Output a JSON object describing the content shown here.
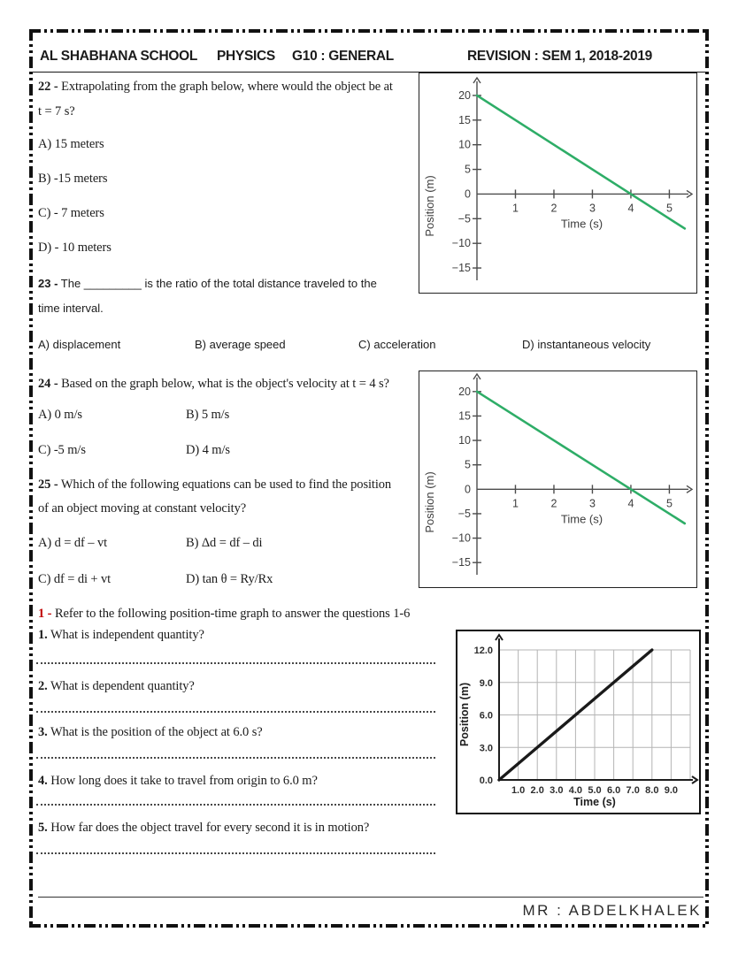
{
  "header": {
    "school": "AL SHABHANA SCHOOL",
    "subject": "PHYSICS",
    "grade": "G10 : GENERAL",
    "revision": "REVISION : SEM 1,  2018-2019"
  },
  "questions": {
    "q22": {
      "number": "22 -",
      "line1": "Extrapolating from the graph below, where would the object be at",
      "line2": "t = 7 s?",
      "options": [
        "A) 15 meters",
        "B) -15 meters",
        "C) - 7 meters",
        "D) - 10 meters"
      ]
    },
    "q23": {
      "number": "23 -",
      "line1": "The _________ is the ratio of the total distance traveled to the",
      "line2": "time interval.",
      "options": [
        "A) displacement",
        "B) average speed",
        "C) acceleration",
        "D) instantaneous velocity"
      ]
    },
    "q24": {
      "number": "24 -",
      "line1": "Based on the graph below, what is the object's velocity at t = 4 s?",
      "options": [
        "A) 0 m/s",
        "B) 5 m/s",
        "C) -5 m/s",
        "D) 4 m/s"
      ]
    },
    "q25": {
      "number": "25 -",
      "line1": "Which of the following equations can be used to find the position",
      "line2": "of an object moving at constant velocity?",
      "options": [
        "A) d = df – vt",
        "B) Δd = df – di",
        "C) df = di + vt",
        "D) tan θ = Ry/Rx"
      ]
    }
  },
  "section1": {
    "number": "1 -",
    "intro": "Refer to the following position-time graph to answer the questions 1-6",
    "items": [
      {
        "num": "1.",
        "text": "What is independent quantity?"
      },
      {
        "num": "2.",
        "text": "What is dependent quantity?"
      },
      {
        "num": "3.",
        "text": "What is the position of the object at 6.0 s?"
      },
      {
        "num": "4.",
        "text": "How long does it take to travel from origin to 6.0 m?"
      },
      {
        "num": "5.",
        "text": "How far does the object travel for every second it is in motion?"
      }
    ]
  },
  "footer": {
    "teacher": "MR : ABDELKHALEK"
  },
  "chart_data": [
    {
      "id": "q22-graph",
      "type": "line",
      "xlabel": "Time (s)",
      "ylabel": "Position (m)",
      "xlim": [
        0,
        5.45
      ],
      "ylim": [
        -17.5,
        22.5
      ],
      "x_ticks": [
        1,
        2,
        3,
        4,
        5
      ],
      "x_tick_labels": [
        "1",
        "2",
        "3",
        "4",
        "5"
      ],
      "y_ticks": [
        -15,
        -10,
        -5,
        0,
        5,
        10,
        15,
        20
      ],
      "y_tick_labels": [
        "−15",
        "−10",
        "−5",
        "0",
        "5",
        "10",
        "15",
        "20"
      ],
      "grid": false,
      "line_color": "#2ead67",
      "points": [
        [
          0,
          20
        ],
        [
          1,
          15
        ],
        [
          2,
          10
        ],
        [
          3,
          5
        ],
        [
          4,
          0
        ],
        [
          5,
          -5
        ],
        [
          5.4,
          -7
        ]
      ]
    },
    {
      "id": "q24-graph",
      "type": "line",
      "xlabel": "Time (s)",
      "ylabel": "Position (m)",
      "xlim": [
        0,
        5.45
      ],
      "ylim": [
        -17.5,
        22.5
      ],
      "x_ticks": [
        1,
        2,
        3,
        4,
        5
      ],
      "x_tick_labels": [
        "1",
        "2",
        "3",
        "4",
        "5"
      ],
      "y_ticks": [
        -15,
        -10,
        -5,
        0,
        5,
        10,
        15,
        20
      ],
      "y_tick_labels": [
        "−15",
        "−10",
        "−5",
        "0",
        "5",
        "10",
        "15",
        "20"
      ],
      "grid": false,
      "line_color": "#2ead67",
      "points": [
        [
          0,
          20
        ],
        [
          1,
          15
        ],
        [
          2,
          10
        ],
        [
          3,
          5
        ],
        [
          4,
          0
        ],
        [
          5,
          -5
        ],
        [
          5.4,
          -7
        ]
      ]
    },
    {
      "id": "questions1-6-graph",
      "type": "line",
      "xlabel": "Time (s)",
      "ylabel": "Position (m)",
      "xlim": [
        0,
        10
      ],
      "ylim": [
        0,
        12
      ],
      "x_ticks": [
        1,
        2,
        3,
        4,
        5,
        6,
        7,
        8,
        9
      ],
      "x_tick_labels": [
        "1.0",
        "2.0",
        "3.0",
        "4.0",
        "5.0",
        "6.0",
        "7.0",
        "8.0",
        "9.0"
      ],
      "y_ticks": [
        0,
        3,
        6,
        9,
        12
      ],
      "y_tick_labels": [
        "0.0",
        "3.0",
        "6.0",
        "9.0",
        "12.0"
      ],
      "grid": true,
      "grid_x": [
        1,
        2,
        3,
        4,
        5,
        6,
        7,
        8,
        9,
        10
      ],
      "grid_y": [
        3,
        6,
        9,
        12
      ],
      "line_color": "#1a1a1a",
      "points": [
        [
          0,
          0
        ],
        [
          2,
          3
        ],
        [
          4,
          6
        ],
        [
          6,
          9
        ],
        [
          8,
          12
        ]
      ]
    }
  ]
}
